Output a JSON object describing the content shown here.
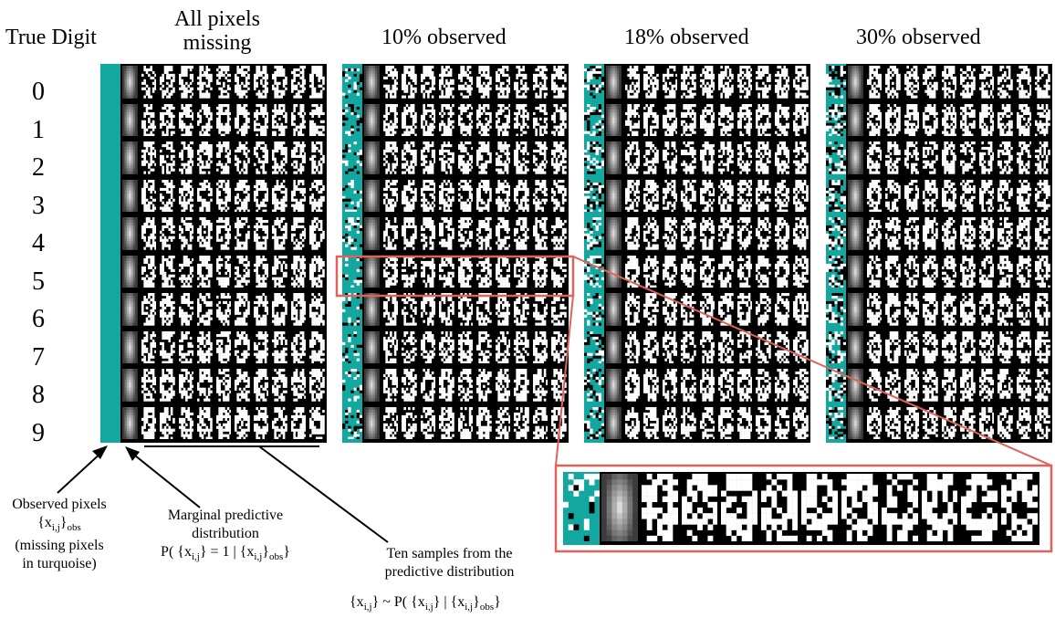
{
  "column_headers": {
    "true_digit": "True Digit",
    "all_missing_line1": "All pixels",
    "all_missing_line2": "missing",
    "p10": "10% observed",
    "p18": "18% observed",
    "p30": "30% observed"
  },
  "digits": [
    "0",
    "1",
    "2",
    "3",
    "4",
    "5",
    "6",
    "7",
    "8",
    "9"
  ],
  "annotations": {
    "observed_line1": "Observed pixels",
    "observed_line3": "(missing pixels",
    "observed_line4": "in turquoise)",
    "marginal_line1": "Marginal predictive",
    "marginal_line2": "distribution",
    "samples_line1": "Ten samples from the",
    "samples_line2": "predictive distribution"
  },
  "colors": {
    "turquoise": "#12a89f",
    "highlight": "#e0625a",
    "background_panel": "#000000",
    "pixel_on": "#ffffff"
  }
}
